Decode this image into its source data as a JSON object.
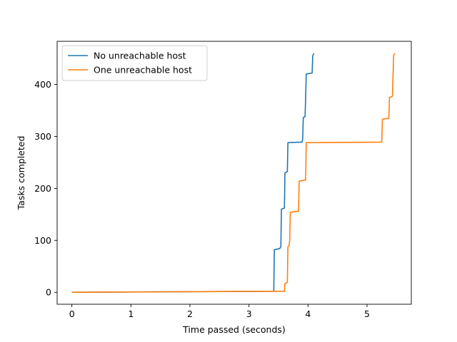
{
  "chart_data": {
    "type": "line",
    "xlabel": "Time passed (seconds)",
    "ylabel": "Tasks completed",
    "xlim": [
      -0.25,
      5.75
    ],
    "ylim": [
      -23,
      483
    ],
    "x_ticks": [
      0,
      1,
      2,
      3,
      4,
      5
    ],
    "y_ticks": [
      0,
      100,
      200,
      300,
      400
    ],
    "grid": false,
    "legend_position": "upper-left",
    "series": [
      {
        "name": "No unreachable host",
        "color": "#1f77b4",
        "points": [
          [
            0,
            0
          ],
          [
            3.42,
            2
          ],
          [
            3.43,
            82
          ],
          [
            3.52,
            84
          ],
          [
            3.54,
            88
          ],
          [
            3.55,
            160
          ],
          [
            3.6,
            162
          ],
          [
            3.61,
            230
          ],
          [
            3.65,
            232
          ],
          [
            3.66,
            288
          ],
          [
            3.9,
            289
          ],
          [
            3.91,
            295
          ],
          [
            3.92,
            336
          ],
          [
            3.95,
            338
          ],
          [
            3.96,
            375
          ],
          [
            3.97,
            420
          ],
          [
            4.07,
            422
          ],
          [
            4.08,
            455
          ],
          [
            4.1,
            460
          ]
        ]
      },
      {
        "name": "One unreachable host",
        "color": "#ff7f0e",
        "points": [
          [
            0,
            0
          ],
          [
            3.6,
            2
          ],
          [
            3.61,
            17
          ],
          [
            3.65,
            19
          ],
          [
            3.66,
            88
          ],
          [
            3.68,
            90
          ],
          [
            3.69,
            100
          ],
          [
            3.7,
            154
          ],
          [
            3.84,
            156
          ],
          [
            3.85,
            214
          ],
          [
            3.96,
            216
          ],
          [
            3.97,
            288
          ],
          [
            5.25,
            289
          ],
          [
            5.26,
            333
          ],
          [
            5.37,
            335
          ],
          [
            5.38,
            375
          ],
          [
            5.43,
            377
          ],
          [
            5.44,
            415
          ],
          [
            5.45,
            455
          ],
          [
            5.47,
            460
          ]
        ]
      }
    ]
  }
}
